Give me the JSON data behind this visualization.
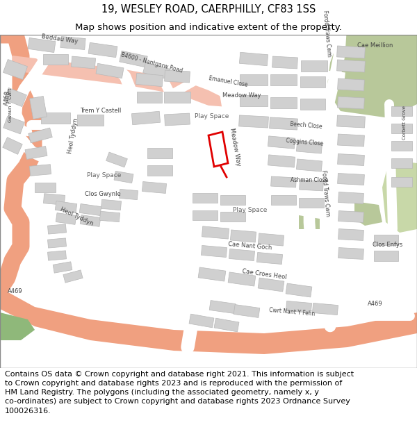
{
  "title_line1": "19, WESLEY ROAD, CAERPHILLY, CF83 1SS",
  "title_line2": "Map shows position and indicative extent of the property.",
  "title_fontsize": 10.5,
  "subtitle_fontsize": 9.5,
  "copyright_text": "Contains OS data © Crown copyright and database right 2021. This information is subject\nto Crown copyright and database rights 2023 and is reproduced with the permission of\nHM Land Registry. The polygons (including the associated geometry, namely x, y\nco-ordinates) are subject to Crown copyright and database rights 2023 Ordnance Survey\n100026316.",
  "copyright_fontsize": 8.0,
  "map_bg": "#f2ede8",
  "road_white": "#ffffff",
  "road_salmon": "#f0a080",
  "road_pink": "#f5c0b0",
  "building_fill": "#d0d0d0",
  "building_edge": "#b8b8b8",
  "green1": "#8fb87a",
  "green2": "#b8c89a",
  "green3": "#c8d8a8",
  "red_color": "#e00000",
  "border_color": "#cccccc",
  "title_bg": "#ffffff",
  "copyright_bg": "#ffffff"
}
